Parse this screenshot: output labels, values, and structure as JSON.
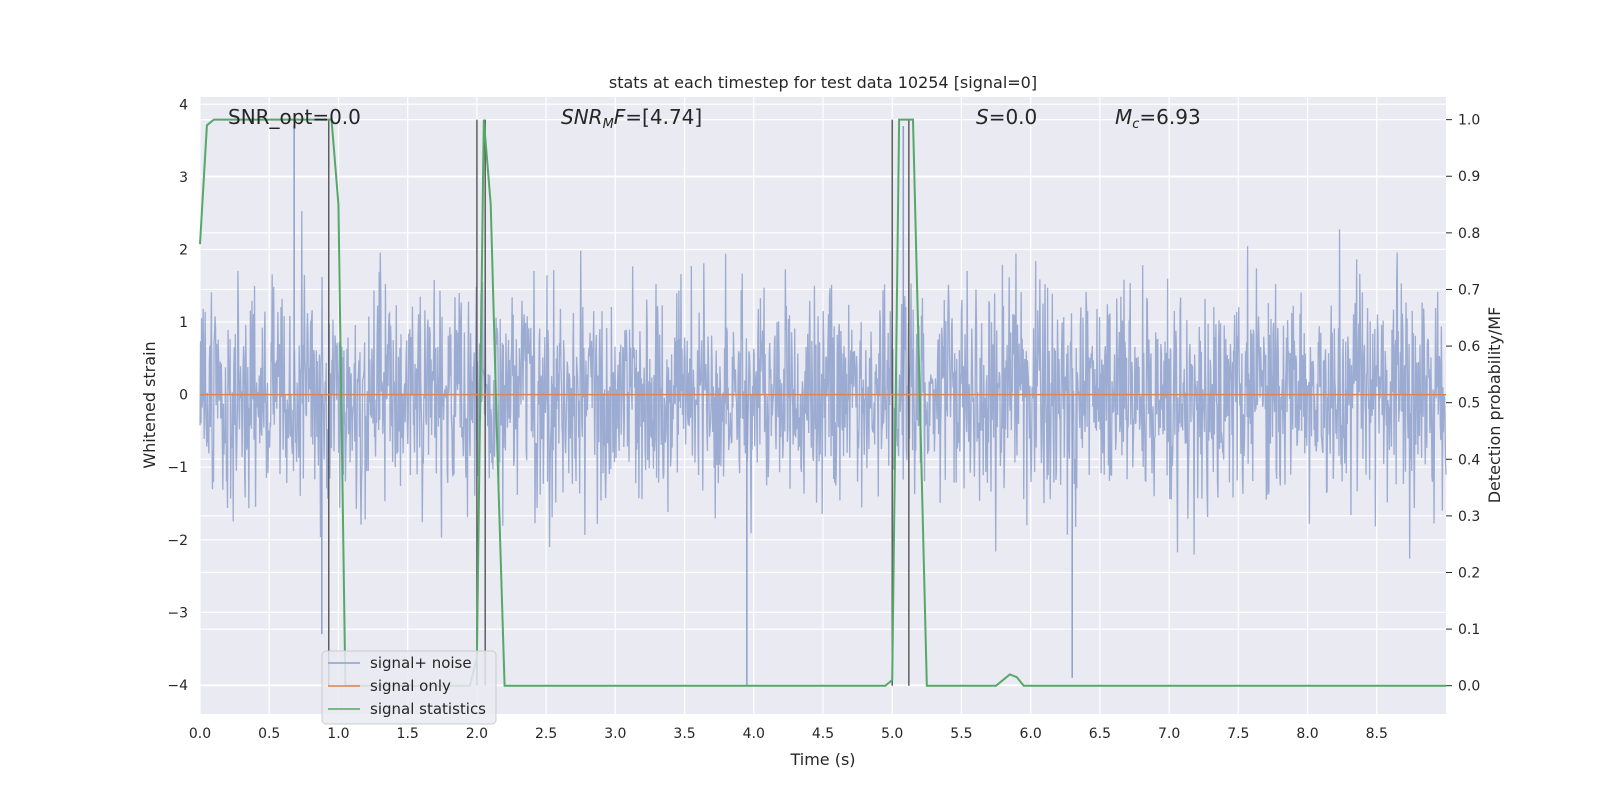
{
  "chart_data": {
    "type": "line",
    "title": "stats at each timestep for test data 10254 [signal=0]",
    "xlabel": "Time (s)",
    "ylabel": "Whitened strain",
    "y2label": "Detection probability/MF",
    "xlim": [
      0.0,
      9.0
    ],
    "ylim": [
      -4.4,
      4.1
    ],
    "y2lim": [
      -0.05,
      1.04
    ],
    "x_ticks": [
      "0.0",
      "0.5",
      "1.0",
      "1.5",
      "2.0",
      "2.5",
      "3.0",
      "3.5",
      "4.0",
      "4.5",
      "5.0",
      "5.5",
      "6.0",
      "6.5",
      "7.0",
      "7.5",
      "8.0",
      "8.5"
    ],
    "y_ticks": [
      "4",
      "3",
      "2",
      "1",
      "0",
      "−1",
      "−2",
      "−3",
      "−4"
    ],
    "y2_ticks": [
      "1.0",
      "0.9",
      "0.8",
      "0.7",
      "0.6",
      "0.5",
      "0.4",
      "0.3",
      "0.2",
      "0.1",
      "0.0"
    ],
    "grid": true,
    "annotations": {
      "snr_opt": "SNR_opt=0.0",
      "snr_mf_main": "SNR",
      "snr_mf_sub": "M",
      "snr_mf_rest": "F=[4.74]",
      "s_main": "S",
      "s_rest": "=0.0",
      "mc_main": "M",
      "mc_sub": "c",
      "mc_rest": "=6.93"
    },
    "legend": {
      "placement": "lower-left",
      "entries": [
        "signal+ noise",
        "signal only",
        "signal statistics"
      ]
    },
    "series": [
      {
        "name": "signal+ noise",
        "color": "#8da0cb",
        "kind": "noise",
        "amplitude_range": [
          -3.9,
          3.7
        ],
        "notable_spikes": [
          [
            0.68,
            3.7
          ],
          [
            0.88,
            -3.3
          ],
          [
            3.95,
            -4.0
          ],
          [
            5.08,
            3.7
          ],
          [
            6.3,
            -3.9
          ]
        ]
      },
      {
        "name": "signal only",
        "color": "#dd8452",
        "x": [
          0.0,
          9.0
        ],
        "values": [
          0.0,
          0.0
        ]
      },
      {
        "name": "signal statistics",
        "color": "#55a868",
        "axis": "right",
        "x": [
          0.0,
          0.05,
          0.1,
          0.15,
          0.9,
          0.95,
          1.0,
          1.05,
          1.1,
          1.95,
          2.0,
          2.05,
          2.1,
          2.15,
          2.2,
          4.95,
          5.0,
          5.05,
          5.1,
          5.15,
          5.2,
          5.25,
          5.7,
          5.75,
          5.8,
          5.85,
          5.9,
          5.95,
          9.0
        ],
        "values": [
          0.78,
          0.99,
          1.0,
          1.0,
          1.0,
          1.0,
          0.85,
          0.0,
          0.0,
          0.0,
          0.05,
          1.0,
          0.85,
          0.4,
          0.0,
          0.0,
          0.01,
          1.0,
          1.0,
          1.0,
          0.5,
          0.0,
          0.0,
          0.0,
          0.01,
          0.02,
          0.015,
          0.0,
          0.0
        ]
      }
    ],
    "vertical_markers": [
      0.93,
      2.0,
      2.06,
      5.0,
      5.12
    ]
  }
}
